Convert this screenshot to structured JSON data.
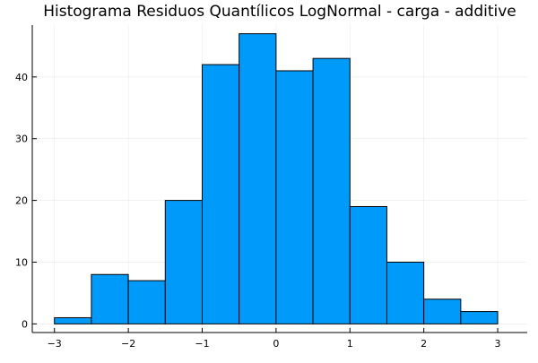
{
  "chart_data": {
    "type": "bar",
    "title": "Histograma Residuos Quantílicos LogNormal - carga - additive",
    "xlabel": "",
    "ylabel": "",
    "bin_edges": [
      -3.0,
      -2.5,
      -2.0,
      -1.5,
      -1.0,
      -0.5,
      0.0,
      0.5,
      1.0,
      1.5,
      2.0,
      2.5,
      3.0
    ],
    "counts": [
      1,
      8,
      7,
      20,
      42,
      47,
      41,
      43,
      19,
      10,
      4,
      2
    ],
    "xlim": [
      -3.3,
      3.4
    ],
    "ylim": [
      -1.4,
      48.4
    ],
    "x_ticks": [
      -3,
      -2,
      -1,
      0,
      1,
      2,
      3
    ],
    "x_tick_labels": [
      "−3",
      "−2",
      "−1",
      "0",
      "1",
      "2",
      "3"
    ],
    "y_ticks": [
      0,
      10,
      20,
      30,
      40
    ],
    "y_tick_labels": [
      "0",
      "10",
      "20",
      "30",
      "40"
    ],
    "grid": true,
    "legend": false,
    "bar_color": "#009AFA",
    "edge_color": "#000000"
  }
}
